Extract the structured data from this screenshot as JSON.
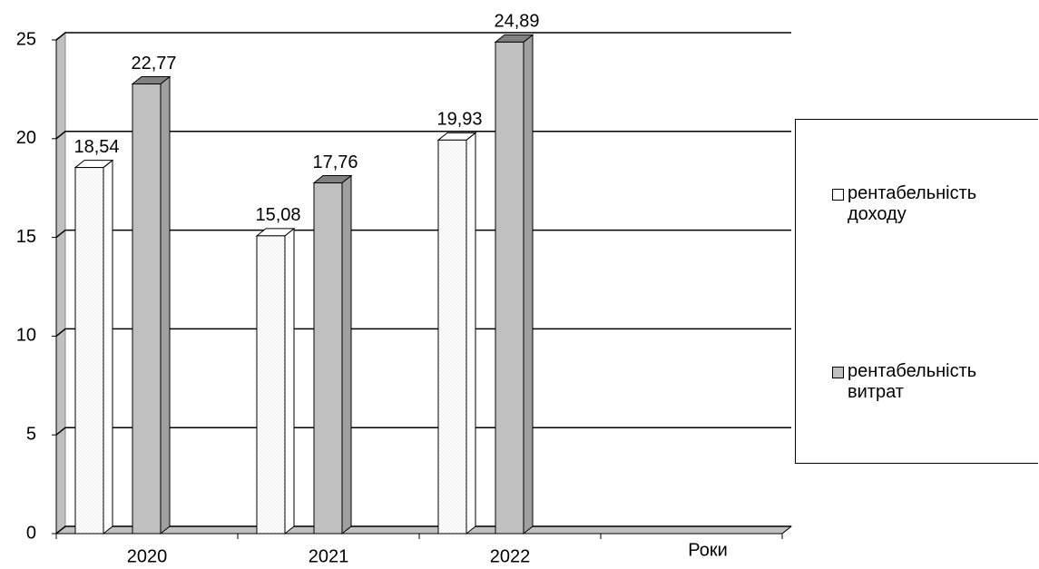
{
  "chart_data": {
    "type": "bar3d",
    "x_label": "Роки",
    "categories": [
      "2020",
      "2021",
      "2022",
      null
    ],
    "series": [
      {
        "name": "рентабельність доходу",
        "color": "#ffffff",
        "values": [
          18.54,
          15.08,
          19.93,
          null
        ],
        "value_labels": [
          "18,54",
          "15,08",
          "19,93",
          null
        ]
      },
      {
        "name": "рентабельність витрат",
        "color": "#c0c0c0",
        "values": [
          22.77,
          17.76,
          24.89,
          null
        ],
        "value_labels": [
          "22,77",
          "17,76",
          "24,89",
          null
        ]
      }
    ],
    "ylim": [
      0,
      25
    ],
    "yticks": [
      0,
      5,
      10,
      15,
      20,
      25
    ],
    "grid": true,
    "legend": "right"
  }
}
